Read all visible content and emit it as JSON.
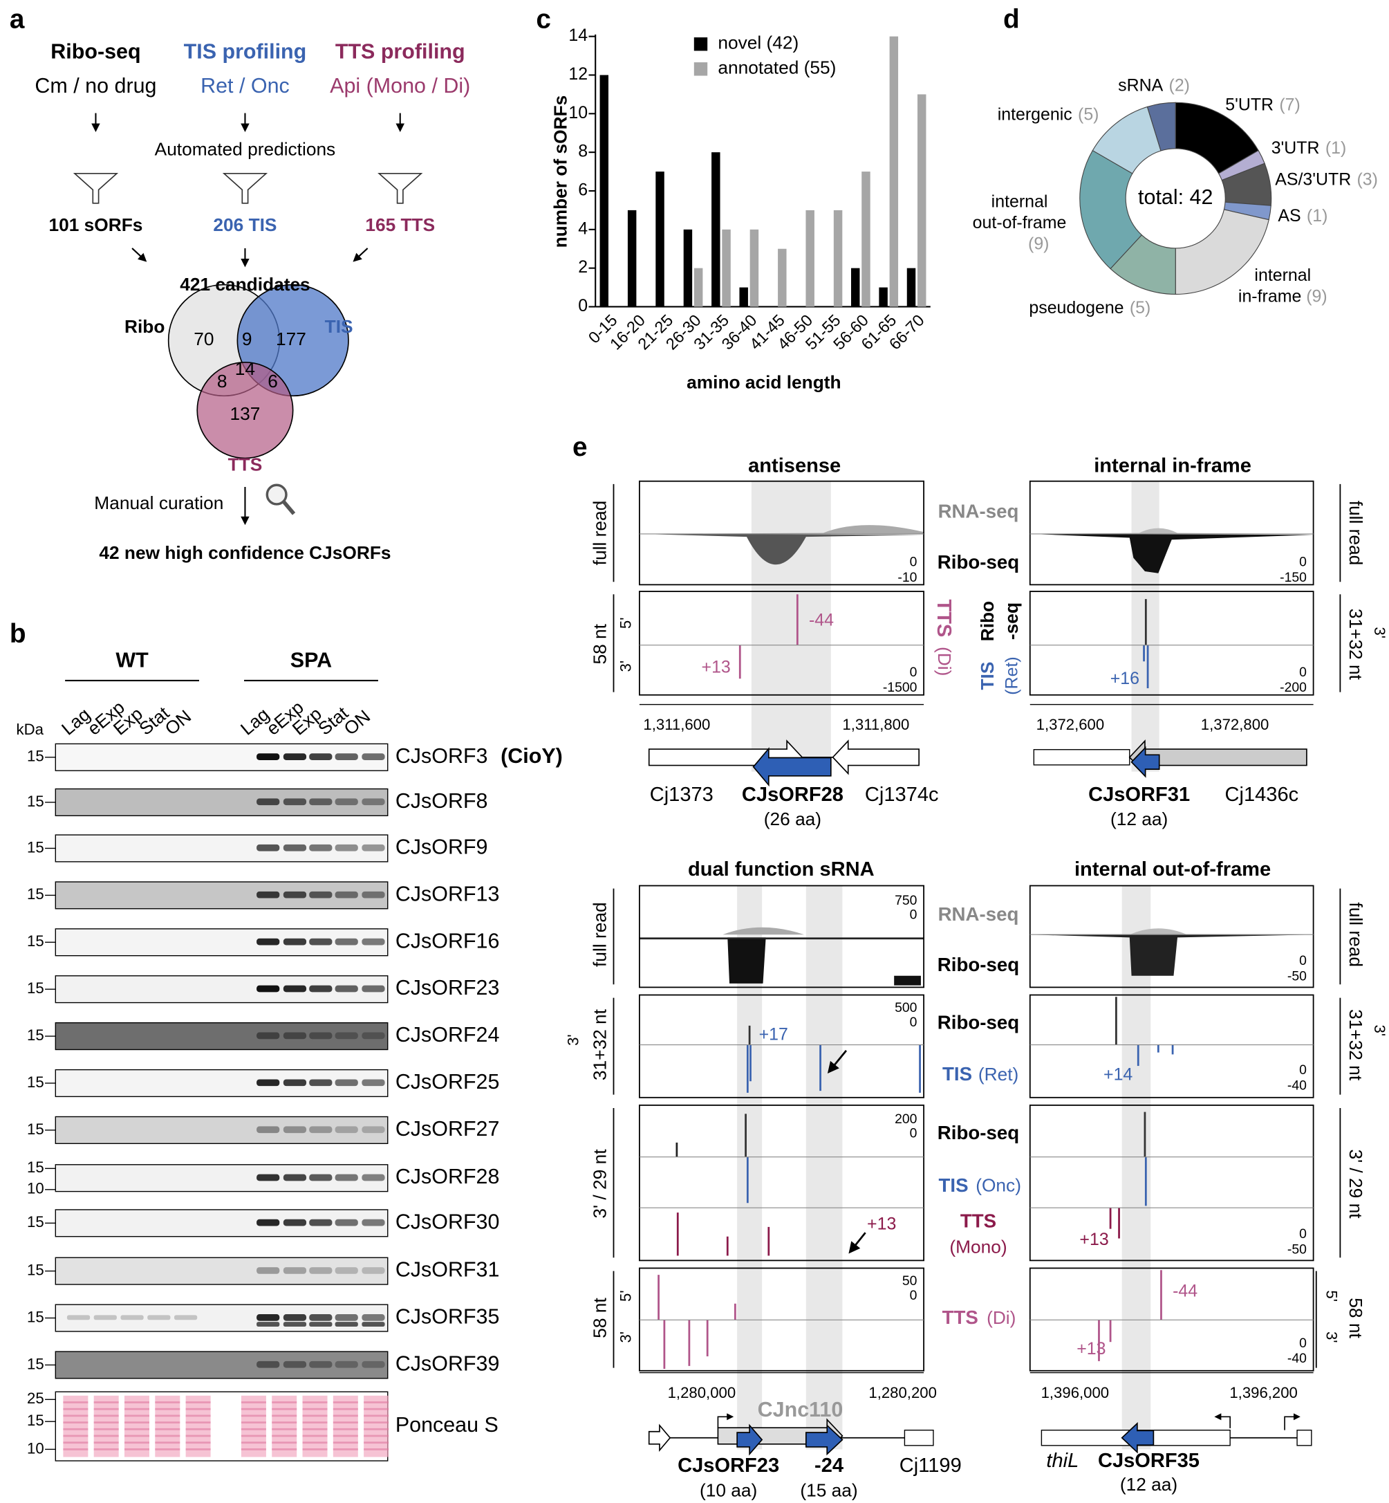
{
  "panel_labels": [
    "a",
    "b",
    "c",
    "d",
    "e"
  ],
  "a": {
    "methods": [
      {
        "title": "Ribo-seq",
        "condition": "Cm / no drug",
        "predictions": "101 sORFs"
      },
      {
        "title": "TIS profiling",
        "condition": "Ret / Onc",
        "predictions": "206 TIS"
      },
      {
        "title": "TTS profiling",
        "condition": "Api (Mono / Di)",
        "predictions": "165 TTS"
      }
    ],
    "step1": "Automated predictions",
    "candidates": "421 candidates",
    "venn": {
      "sets": [
        "Ribo",
        "TIS",
        "TTS"
      ],
      "counts": [
        70,
        9,
        177,
        14,
        8,
        6,
        137
      ]
    },
    "step2": "Manual curation",
    "result": "42 new high confidence CJsORFs"
  },
  "b": {
    "groups": [
      "WT",
      "SPA"
    ],
    "phases": [
      "Lag",
      "eExp",
      "Exp",
      "Stat",
      "ON"
    ],
    "unit": "kDa",
    "rows": [
      {
        "name": "CJsORF3",
        "note": "(CioY)",
        "markers": [
          "15"
        ]
      },
      {
        "name": "CJsORF8",
        "markers": [
          "15"
        ]
      },
      {
        "name": "CJsORF9",
        "markers": [
          "15"
        ]
      },
      {
        "name": "CJsORF13",
        "markers": [
          "15"
        ]
      },
      {
        "name": "CJsORF16",
        "markers": [
          "15"
        ]
      },
      {
        "name": "CJsORF23",
        "markers": [
          "15"
        ]
      },
      {
        "name": "CJsORF24",
        "markers": [
          "15"
        ]
      },
      {
        "name": "CJsORF25",
        "markers": [
          "15"
        ]
      },
      {
        "name": "CJsORF27",
        "markers": [
          "15"
        ]
      },
      {
        "name": "CJsORF28",
        "markers": [
          "15",
          "10"
        ]
      },
      {
        "name": "CJsORF30",
        "markers": [
          "15"
        ]
      },
      {
        "name": "CJsORF31",
        "markers": [
          "15"
        ]
      },
      {
        "name": "CJsORF35",
        "markers": [
          "15"
        ]
      },
      {
        "name": "CJsORF39",
        "markers": [
          "15"
        ]
      }
    ],
    "ponceau": {
      "name": "Ponceau S",
      "markers": [
        "25",
        "15",
        "10"
      ]
    }
  },
  "chart_data": [
    {
      "type": "bar",
      "categories": [
        "0-15",
        "16-20",
        "21-25",
        "26-30",
        "31-35",
        "36-40",
        "41-45",
        "46-50",
        "51-55",
        "56-60",
        "61-65",
        "66-70"
      ],
      "series": [
        {
          "name": "novel (42)",
          "color": "#000000",
          "values": [
            12,
            5,
            7,
            4,
            8,
            1,
            0,
            0,
            0,
            2,
            1,
            2
          ]
        },
        {
          "name": "annotated (55)",
          "color": "#a6a6a6",
          "values": [
            0,
            0,
            0,
            2,
            4,
            4,
            3,
            5,
            5,
            7,
            14,
            11
          ]
        }
      ],
      "xlabel": "amino acid length",
      "ylabel": "number of sORFs",
      "ylim": [
        0,
        14
      ],
      "yticks": [
        0,
        2,
        4,
        6,
        8,
        10,
        12,
        14
      ]
    },
    {
      "type": "pie",
      "center_label": "total: 42",
      "categories": [
        "5'UTR",
        "3'UTR",
        "AS/3'UTR",
        "AS",
        "internal in-frame",
        "pseudogene",
        "internal out-of-frame",
        "intergenic",
        "sRNA"
      ],
      "values": [
        7,
        1,
        3,
        1,
        9,
        5,
        9,
        5,
        2
      ],
      "value_labels": [
        "(7)",
        "(1)",
        "(3)",
        "(1)",
        "(9)",
        "(5)",
        "(9)",
        "(5)",
        "(2)"
      ],
      "colors": [
        "#000000",
        "#b4aed2",
        "#555555",
        "#8098cc",
        "#dadada",
        "#8fb3a6",
        "#6fa8ae",
        "#b9d5e2",
        "#5b6f9c"
      ]
    }
  ],
  "e": {
    "panels": [
      {
        "texts": [
          "antisense",
          "full read",
          "58 nt",
          "5'",
          "3'",
          "0",
          "-10",
          "0",
          "-1500",
          "-44",
          "+13",
          "1,311,600",
          "1,311,800",
          "Cj1373",
          "CJsORF28",
          "(26 aa)",
          "Cj1374c",
          "TTS",
          "(Di)"
        ]
      },
      {
        "texts": [
          "internal in-frame",
          "RNA-seq",
          "Ribo-seq",
          "full read",
          "3'",
          "31+32 nt",
          "Ribo",
          "-seq",
          "TIS",
          "(Ret)",
          "0",
          "-150",
          "0",
          "-200",
          "+16",
          "1,372,600",
          "1,372,800",
          "CJsORF31",
          "(12 aa)",
          "Cj1436c"
        ]
      },
      {
        "texts": [
          "dual function sRNA",
          "full read",
          "3'",
          "31+32 nt",
          "3' / 29 nt",
          "58 nt",
          "5'",
          "3'",
          "750",
          "0",
          "500",
          "0",
          "200",
          "0",
          "50",
          "0",
          "+17",
          "+13",
          "1,280,000",
          "1,280,200",
          "CJnc110",
          "CJsORF23",
          "(10 aa)",
          "-24",
          "(15 aa)",
          "Cj1199",
          "RNA-seq",
          "Ribo-seq",
          "Ribo-seq",
          "TIS",
          "(Ret)",
          "Ribo-seq",
          "TIS",
          "(Onc)",
          "TTS",
          "(Mono)",
          "TTS",
          "(Di)"
        ]
      },
      {
        "texts": [
          "internal out-of-frame",
          "full read",
          "3'",
          "31+32 nt",
          "3' / 29 nt",
          "5'",
          "58 nt",
          "3'",
          "0",
          "-50",
          "0",
          "-40",
          "0",
          "-50",
          "0",
          "-40",
          "+14",
          "+13",
          "-44",
          "+13",
          "1,396,000",
          "1,396,200",
          "thiL",
          "CJsORF35",
          "(12 aa)"
        ]
      }
    ]
  }
}
